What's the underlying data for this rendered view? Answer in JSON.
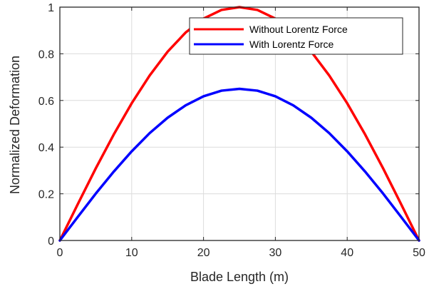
{
  "chart_data": {
    "type": "line",
    "title": "",
    "xlabel": "Blade Length (m)",
    "ylabel": "Normalized Deformation",
    "xlim": [
      0,
      50
    ],
    "ylim": [
      0,
      1
    ],
    "xticks": [
      0,
      10,
      20,
      30,
      40,
      50
    ],
    "yticks": [
      0,
      0.2,
      0.4,
      0.6,
      0.8,
      1
    ],
    "xtick_labels": [
      "0",
      "10",
      "20",
      "30",
      "40",
      "50"
    ],
    "ytick_labels": [
      "0",
      "0.2",
      "0.4",
      "0.6",
      "0.8",
      "1"
    ],
    "grid": true,
    "legend_position": "top-right",
    "series": [
      {
        "name": "Without Lorentz Force",
        "color": "#ff0000",
        "x": [
          0,
          2.5,
          5,
          7.5,
          10,
          12.5,
          15,
          17.5,
          20,
          22.5,
          25,
          27.5,
          30,
          32.5,
          35,
          37.5,
          40,
          42.5,
          45,
          47.5,
          50
        ],
        "values": [
          0,
          0.156,
          0.309,
          0.454,
          0.588,
          0.707,
          0.809,
          0.891,
          0.951,
          0.988,
          1.0,
          0.988,
          0.951,
          0.891,
          0.809,
          0.707,
          0.588,
          0.454,
          0.309,
          0.156,
          0
        ]
      },
      {
        "name": "With Lorentz Force",
        "color": "#0000ff",
        "x": [
          0,
          2.5,
          5,
          7.5,
          10,
          12.5,
          15,
          17.5,
          20,
          22.5,
          25,
          27.5,
          30,
          32.5,
          35,
          37.5,
          40,
          42.5,
          45,
          47.5,
          50
        ],
        "values": [
          0,
          0.101,
          0.201,
          0.295,
          0.382,
          0.46,
          0.526,
          0.579,
          0.618,
          0.642,
          0.65,
          0.642,
          0.618,
          0.579,
          0.526,
          0.46,
          0.382,
          0.295,
          0.201,
          0.101,
          0
        ]
      }
    ]
  }
}
